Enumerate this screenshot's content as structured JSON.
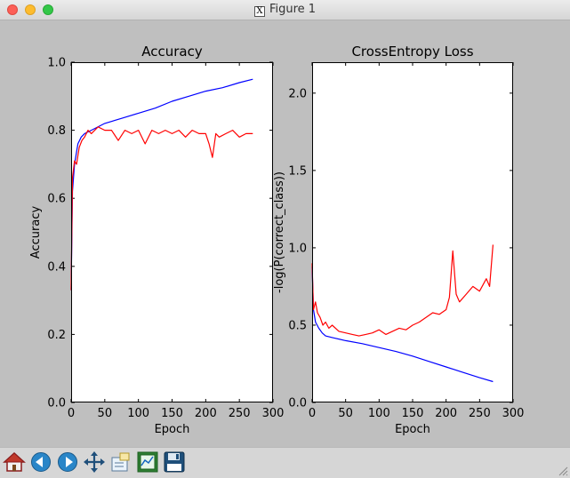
{
  "window": {
    "title": "Figure 1"
  },
  "toolbar": {
    "buttons": [
      "home",
      "back",
      "forward",
      "pan",
      "zoom",
      "subplots",
      "save"
    ]
  },
  "colors": {
    "train": "#0000ff",
    "validation": "#ff0000"
  },
  "chart_data": [
    {
      "type": "line",
      "title": "Accuracy",
      "xlabel": "Epoch",
      "ylabel": "Accuracy",
      "xlim": [
        0,
        300
      ],
      "ylim": [
        0.0,
        1.0
      ],
      "xticks": [
        "0",
        "50",
        "100",
        "150",
        "200",
        "250",
        "300"
      ],
      "yticks": [
        "0.0",
        "0.2",
        "0.4",
        "0.6",
        "0.8",
        "1.0"
      ],
      "series": [
        {
          "color": "#0000ff",
          "x": [
            0,
            2,
            5,
            10,
            15,
            20,
            30,
            50,
            75,
            100,
            125,
            150,
            175,
            200,
            225,
            250,
            270
          ],
          "y": [
            0.33,
            0.62,
            0.7,
            0.76,
            0.78,
            0.79,
            0.8,
            0.82,
            0.835,
            0.85,
            0.865,
            0.885,
            0.9,
            0.915,
            0.925,
            0.94,
            0.95
          ]
        },
        {
          "color": "#ff0000",
          "x": [
            0,
            2,
            5,
            8,
            12,
            16,
            20,
            25,
            30,
            40,
            50,
            60,
            70,
            80,
            90,
            100,
            110,
            120,
            130,
            140,
            150,
            160,
            170,
            180,
            190,
            200,
            205,
            210,
            215,
            220,
            230,
            240,
            250,
            260,
            270
          ],
          "y": [
            0.33,
            0.66,
            0.71,
            0.7,
            0.75,
            0.77,
            0.78,
            0.8,
            0.79,
            0.81,
            0.8,
            0.8,
            0.77,
            0.8,
            0.79,
            0.8,
            0.76,
            0.8,
            0.79,
            0.8,
            0.79,
            0.8,
            0.78,
            0.8,
            0.79,
            0.79,
            0.76,
            0.72,
            0.79,
            0.78,
            0.79,
            0.8,
            0.78,
            0.79,
            0.79
          ]
        }
      ]
    },
    {
      "type": "line",
      "title": "CrossEntropy Loss",
      "xlabel": "Epoch",
      "ylabel": "-log(P(correct_class))",
      "xlim": [
        0,
        300
      ],
      "ylim": [
        0.0,
        2.2
      ],
      "xticks": [
        "0",
        "50",
        "100",
        "150",
        "200",
        "250",
        "300"
      ],
      "yticks": [
        "0.0",
        "0.5",
        "1.0",
        "1.5",
        "2.0"
      ],
      "series": [
        {
          "color": "#0000ff",
          "x": [
            0,
            2,
            5,
            10,
            15,
            20,
            30,
            50,
            75,
            100,
            125,
            150,
            175,
            200,
            225,
            250,
            270
          ],
          "y": [
            0.88,
            0.6,
            0.52,
            0.48,
            0.45,
            0.43,
            0.42,
            0.4,
            0.38,
            0.355,
            0.33,
            0.3,
            0.265,
            0.23,
            0.195,
            0.16,
            0.135
          ]
        },
        {
          "color": "#ff0000",
          "x": [
            0,
            2,
            5,
            8,
            12,
            16,
            20,
            25,
            30,
            40,
            50,
            60,
            70,
            80,
            90,
            100,
            110,
            120,
            130,
            140,
            150,
            160,
            170,
            180,
            190,
            200,
            205,
            210,
            215,
            220,
            230,
            240,
            250,
            260,
            265,
            270
          ],
          "y": [
            0.9,
            0.6,
            0.65,
            0.58,
            0.55,
            0.5,
            0.52,
            0.48,
            0.5,
            0.46,
            0.45,
            0.44,
            0.43,
            0.44,
            0.45,
            0.47,
            0.44,
            0.46,
            0.48,
            0.47,
            0.5,
            0.52,
            0.55,
            0.58,
            0.57,
            0.6,
            0.68,
            0.98,
            0.7,
            0.65,
            0.7,
            0.75,
            0.72,
            0.8,
            0.75,
            1.02
          ]
        }
      ]
    }
  ]
}
